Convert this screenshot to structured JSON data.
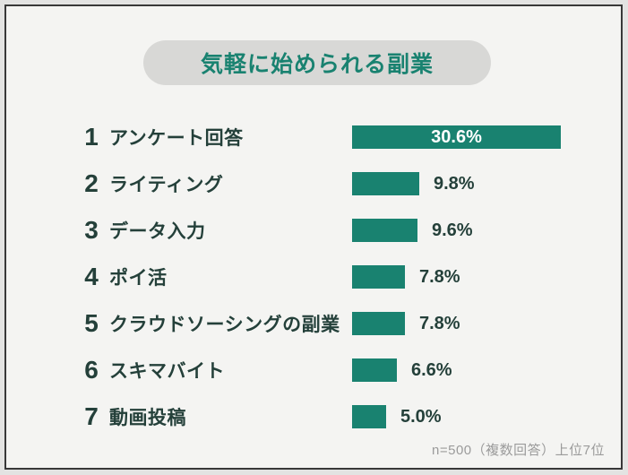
{
  "title": {
    "text": "気軽に始められる副業"
  },
  "footer": {
    "note": "n=500（複数回答）上位7位"
  },
  "colors": {
    "bar": "#198270",
    "title_teal": "#198270",
    "label_dark": "#24403a",
    "pill_background": "#d8d8d6",
    "page_background": "#f4f4f2",
    "frame_border": "#383838",
    "note_gray": "#9b9b9b"
  },
  "chart_data": {
    "type": "bar",
    "orientation": "horizontal",
    "title": "気軽に始められる副業",
    "categories": [
      "アンケート回答",
      "ライティング",
      "データ入力",
      "ポイ活",
      "クラウドソーシングの副業",
      "スキマバイト",
      "動画投稿"
    ],
    "ranks": [
      1,
      2,
      3,
      4,
      5,
      6,
      7
    ],
    "values": [
      30.6,
      9.8,
      9.6,
      7.8,
      7.8,
      6.6,
      5.0
    ],
    "value_labels": [
      "30.6%",
      "9.8%",
      "9.6%",
      "7.8%",
      "7.8%",
      "6.6%",
      "5.0%"
    ],
    "value_label_inside": [
      true,
      false,
      false,
      false,
      false,
      false,
      false
    ],
    "xlim": [
      0,
      31.5
    ],
    "grid": false,
    "legend": false,
    "note": "n=500（複数回答）上位7位"
  }
}
